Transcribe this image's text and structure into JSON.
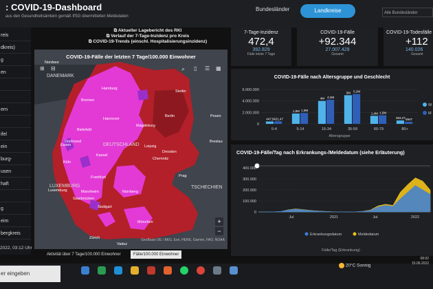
{
  "header": {
    "title": ": COVID-19-Dashboard",
    "subtitle": "aus den Gesundheitsämtern gemäß IfSG übermittelten Meldedaten",
    "btn_bundeslaender": "Bundesländer",
    "btn_landkreise": "Landkreise",
    "select_value": "Alle Bundesländer"
  },
  "sidebar": {
    "items": [
      {
        "label": "reis"
      },
      {
        "label": "dkreis)"
      },
      {
        "label": "g"
      },
      {
        "label": "en"
      },
      {
        "label": ""
      },
      {
        "label": ""
      },
      {
        "label": "ern"
      },
      {
        "label": ""
      },
      {
        "label": "ifel"
      },
      {
        "label": "ein"
      },
      {
        "label": "burg-"
      },
      {
        "label": "usen"
      },
      {
        "label": "haft"
      },
      {
        "label": ""
      },
      {
        "label": "g"
      },
      {
        "label": "eim"
      },
      {
        "label": "bergkreis"
      }
    ],
    "timestamp": "2022, 03:12 Uhr"
  },
  "info_links": [
    "Aktueller Lagebericht des RKI",
    "Verlauf der 7-Tage-Inzidenz pro Kreis",
    "COVID-19-Trends (einschl. Hospitalisierungsinzidenz)"
  ],
  "map": {
    "title": "COVID-19-Fälle der letzten 7 Tage/100.000 Einwohner",
    "attribution": "GeoBasis-DE / BKG, Esri, HERE, Garmin, FAO, NOAA",
    "labels": [
      {
        "text": "Hamburg"
      },
      {
        "text": "Bremen"
      },
      {
        "text": "Stettin"
      },
      {
        "text": "Hannover"
      },
      {
        "text": "Berlin"
      },
      {
        "text": "Posen"
      },
      {
        "text": "Bielefeld"
      },
      {
        "text": "Dortmund"
      },
      {
        "text": "Magdeburg"
      },
      {
        "text": "Essen"
      },
      {
        "text": "DEUTSCHLAND"
      },
      {
        "text": "Leipzig"
      },
      {
        "text": "Kassel"
      },
      {
        "text": "Dresden"
      },
      {
        "text": "Köln"
      },
      {
        "text": "Chemnitz"
      },
      {
        "text": "Frankfurt"
      },
      {
        "text": "Prag"
      },
      {
        "text": "Nürnberg"
      },
      {
        "text": "TSCHECHIEN"
      },
      {
        "text": "Stuttgart"
      },
      {
        "text": "München"
      },
      {
        "text": "Zürich"
      },
      {
        "text": "Vaduz"
      },
      {
        "text": "Mannheim"
      },
      {
        "text": "Saarbrücken"
      },
      {
        "text": "LUXEMBURG"
      },
      {
        "text": "Luxemburg"
      },
      {
        "text": "Nordsee"
      },
      {
        "text": "DANEMARK"
      },
      {
        "text": "Breslau"
      }
    ],
    "tabs": [
      "Aktivität über 7 Tage/100.000 Einwohner",
      "Fälle/100.000 Einwohner"
    ]
  },
  "kpis": [
    {
      "label": "7-Tage-Inzidenz",
      "value": "472,4",
      "sub": "392.829",
      "sub2": "Fälle letzte 7 Tage"
    },
    {
      "label": "COVID-19-Fälle",
      "value": "+92.344",
      "sub": "27.007.429",
      "sub2": "Gesamt"
    },
    {
      "label": "COVID-19-Todesfälle",
      "value": "+112",
      "sub": "140.026",
      "sub2": "Gesamt"
    }
  ],
  "colors": {
    "accent": "#2d93d6",
    "kpi_value_blue": "#7fb8e6",
    "bar_light": "#4fb3ea",
    "bar_dark": "#2f5fb8",
    "map_high": "#b3202a",
    "map_very_high": "#e33ad6",
    "erkrankung": "#3c7fd9",
    "melde": "#f2c21a"
  },
  "chart_data": [
    {
      "type": "bar",
      "title": "COVID-19-Fälle nach Altersgruppe und Geschlecht",
      "xlabel": "Altersgruppe",
      "ylabel": "",
      "categories": [
        "0-4",
        "5-14",
        "15-34",
        "35-59",
        "60-79",
        "80+"
      ],
      "ylim": [
        0,
        6000000
      ],
      "yticks": [
        "6.000.000",
        "4.000.000",
        "2.000.000",
        "0"
      ],
      "series": [
        {
          "name": "W",
          "values": [
            421000,
            1800000,
            4000000,
            5000000,
            1400000,
            594000
          ]
        },
        {
          "name": "M",
          "values": [
            447000,
            1900000,
            4200000,
            5200000,
            1500000,
            353000
          ]
        }
      ],
      "data_labels": [
        "447,5",
        "421,47",
        "1,8M",
        "1,9M",
        "4M",
        "4,2M",
        "5M",
        "5,2M",
        "1,4M",
        "1,5M",
        "353,27",
        "594T"
      ]
    },
    {
      "type": "area",
      "title": "COVID-19-Fälle/Tag nach Erkrankungs-/Meldedatum (siehe Erläuterung)",
      "xlabel": "Fälle/Tag (Erkrankung)",
      "ylabel": "",
      "x_ticks": [
        "Jul",
        "2021",
        "Jul",
        "2022"
      ],
      "ylim": [
        0,
        400000
      ],
      "yticks": [
        "400.000",
        "300.000",
        "200.000",
        "100.000",
        "0"
      ],
      "series": [
        {
          "name": "Erkrankungsdatum",
          "values": [
            200,
            500,
            1500,
            5000,
            18000,
            25000,
            20000,
            12000,
            8000,
            4000,
            1500,
            800,
            600,
            1000,
            5000,
            15000,
            45000,
            60000,
            50000,
            120000,
            180000,
            240000,
            200000,
            160000
          ]
        },
        {
          "name": "Meldedatum",
          "values": [
            200,
            400,
            1200,
            4500,
            20000,
            28000,
            22000,
            14000,
            9000,
            5000,
            1800,
            1000,
            800,
            1200,
            6000,
            18000,
            55000,
            70000,
            60000,
            180000,
            250000,
            310000,
            280000,
            200000
          ]
        }
      ]
    }
  ],
  "taskbar": {
    "search_text": "er eingeben",
    "weather_temp": "20°C",
    "weather_text": "Sonnig",
    "clock_time": "08:02",
    "clock_date": "15.06.2022"
  }
}
